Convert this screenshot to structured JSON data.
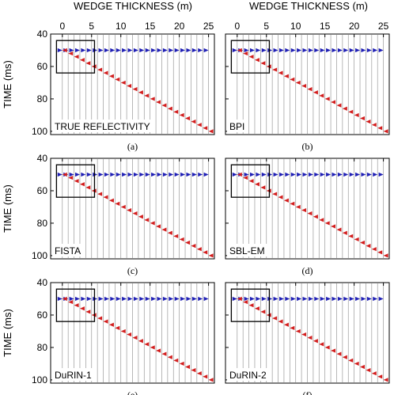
{
  "figure": {
    "top_axis_label": "WEDGE THICKNESS (m)",
    "y_axis_label": "TIME (ms)"
  },
  "axes": {
    "xlim": [
      -2,
      26
    ],
    "ylim": [
      40,
      102
    ],
    "xticks": [
      0,
      5,
      10,
      15,
      20,
      25
    ],
    "yticks": [
      40,
      60,
      80,
      100
    ],
    "grid": "vertical traces every 1 m",
    "highlight_box": {
      "x": [
        -1,
        5.5
      ],
      "y": [
        44,
        64
      ]
    }
  },
  "colors": {
    "top_reflector": "#1f1fb4",
    "bottom_reflector": "#d21e1e",
    "trace": "#9a9a9a",
    "box": "#000000"
  },
  "chart_data": [
    {
      "type": "line",
      "panel_label": "TRUE REFLECTIVITY",
      "caption": "(a)",
      "series": [
        {
          "values_x": [
            0,
            25
          ],
          "values_y": [
            50,
            50
          ],
          "polarity": "negative"
        },
        {
          "values_x": [
            0,
            25
          ],
          "values_y": [
            50,
            100
          ],
          "polarity": "positive"
        }
      ]
    },
    {
      "type": "line",
      "panel_label": "BPI",
      "caption": "(b)",
      "series": [
        {
          "values_x": [
            0,
            25
          ],
          "values_y": [
            50,
            50
          ],
          "polarity": "negative"
        },
        {
          "values_x": [
            0,
            25
          ],
          "values_y": [
            50,
            100
          ],
          "polarity": "positive"
        }
      ]
    },
    {
      "type": "line",
      "panel_label": "FISTA",
      "caption": "(c)",
      "series": [
        {
          "values_x": [
            0,
            25
          ],
          "values_y": [
            50,
            50
          ],
          "polarity": "negative"
        },
        {
          "values_x": [
            0,
            25
          ],
          "values_y": [
            50,
            100
          ],
          "polarity": "positive"
        }
      ]
    },
    {
      "type": "line",
      "panel_label": "SBL-EM",
      "caption": "(d)",
      "series": [
        {
          "values_x": [
            0,
            25
          ],
          "values_y": [
            50,
            50
          ],
          "polarity": "negative"
        },
        {
          "values_x": [
            0,
            25
          ],
          "values_y": [
            50,
            100
          ],
          "polarity": "positive"
        }
      ]
    },
    {
      "type": "line",
      "panel_label": "DuRIN-1",
      "caption": "(e)",
      "series": [
        {
          "values_x": [
            0,
            25
          ],
          "values_y": [
            50,
            50
          ],
          "polarity": "negative"
        },
        {
          "values_x": [
            0,
            25
          ],
          "values_y": [
            50,
            100
          ],
          "polarity": "positive"
        }
      ]
    },
    {
      "type": "line",
      "panel_label": "DuRIN-2",
      "caption": "(f)",
      "series": [
        {
          "values_x": [
            0,
            25
          ],
          "values_y": [
            50,
            50
          ],
          "polarity": "negative"
        },
        {
          "values_x": [
            0,
            25
          ],
          "values_y": [
            50,
            100
          ],
          "polarity": "positive"
        }
      ]
    }
  ]
}
